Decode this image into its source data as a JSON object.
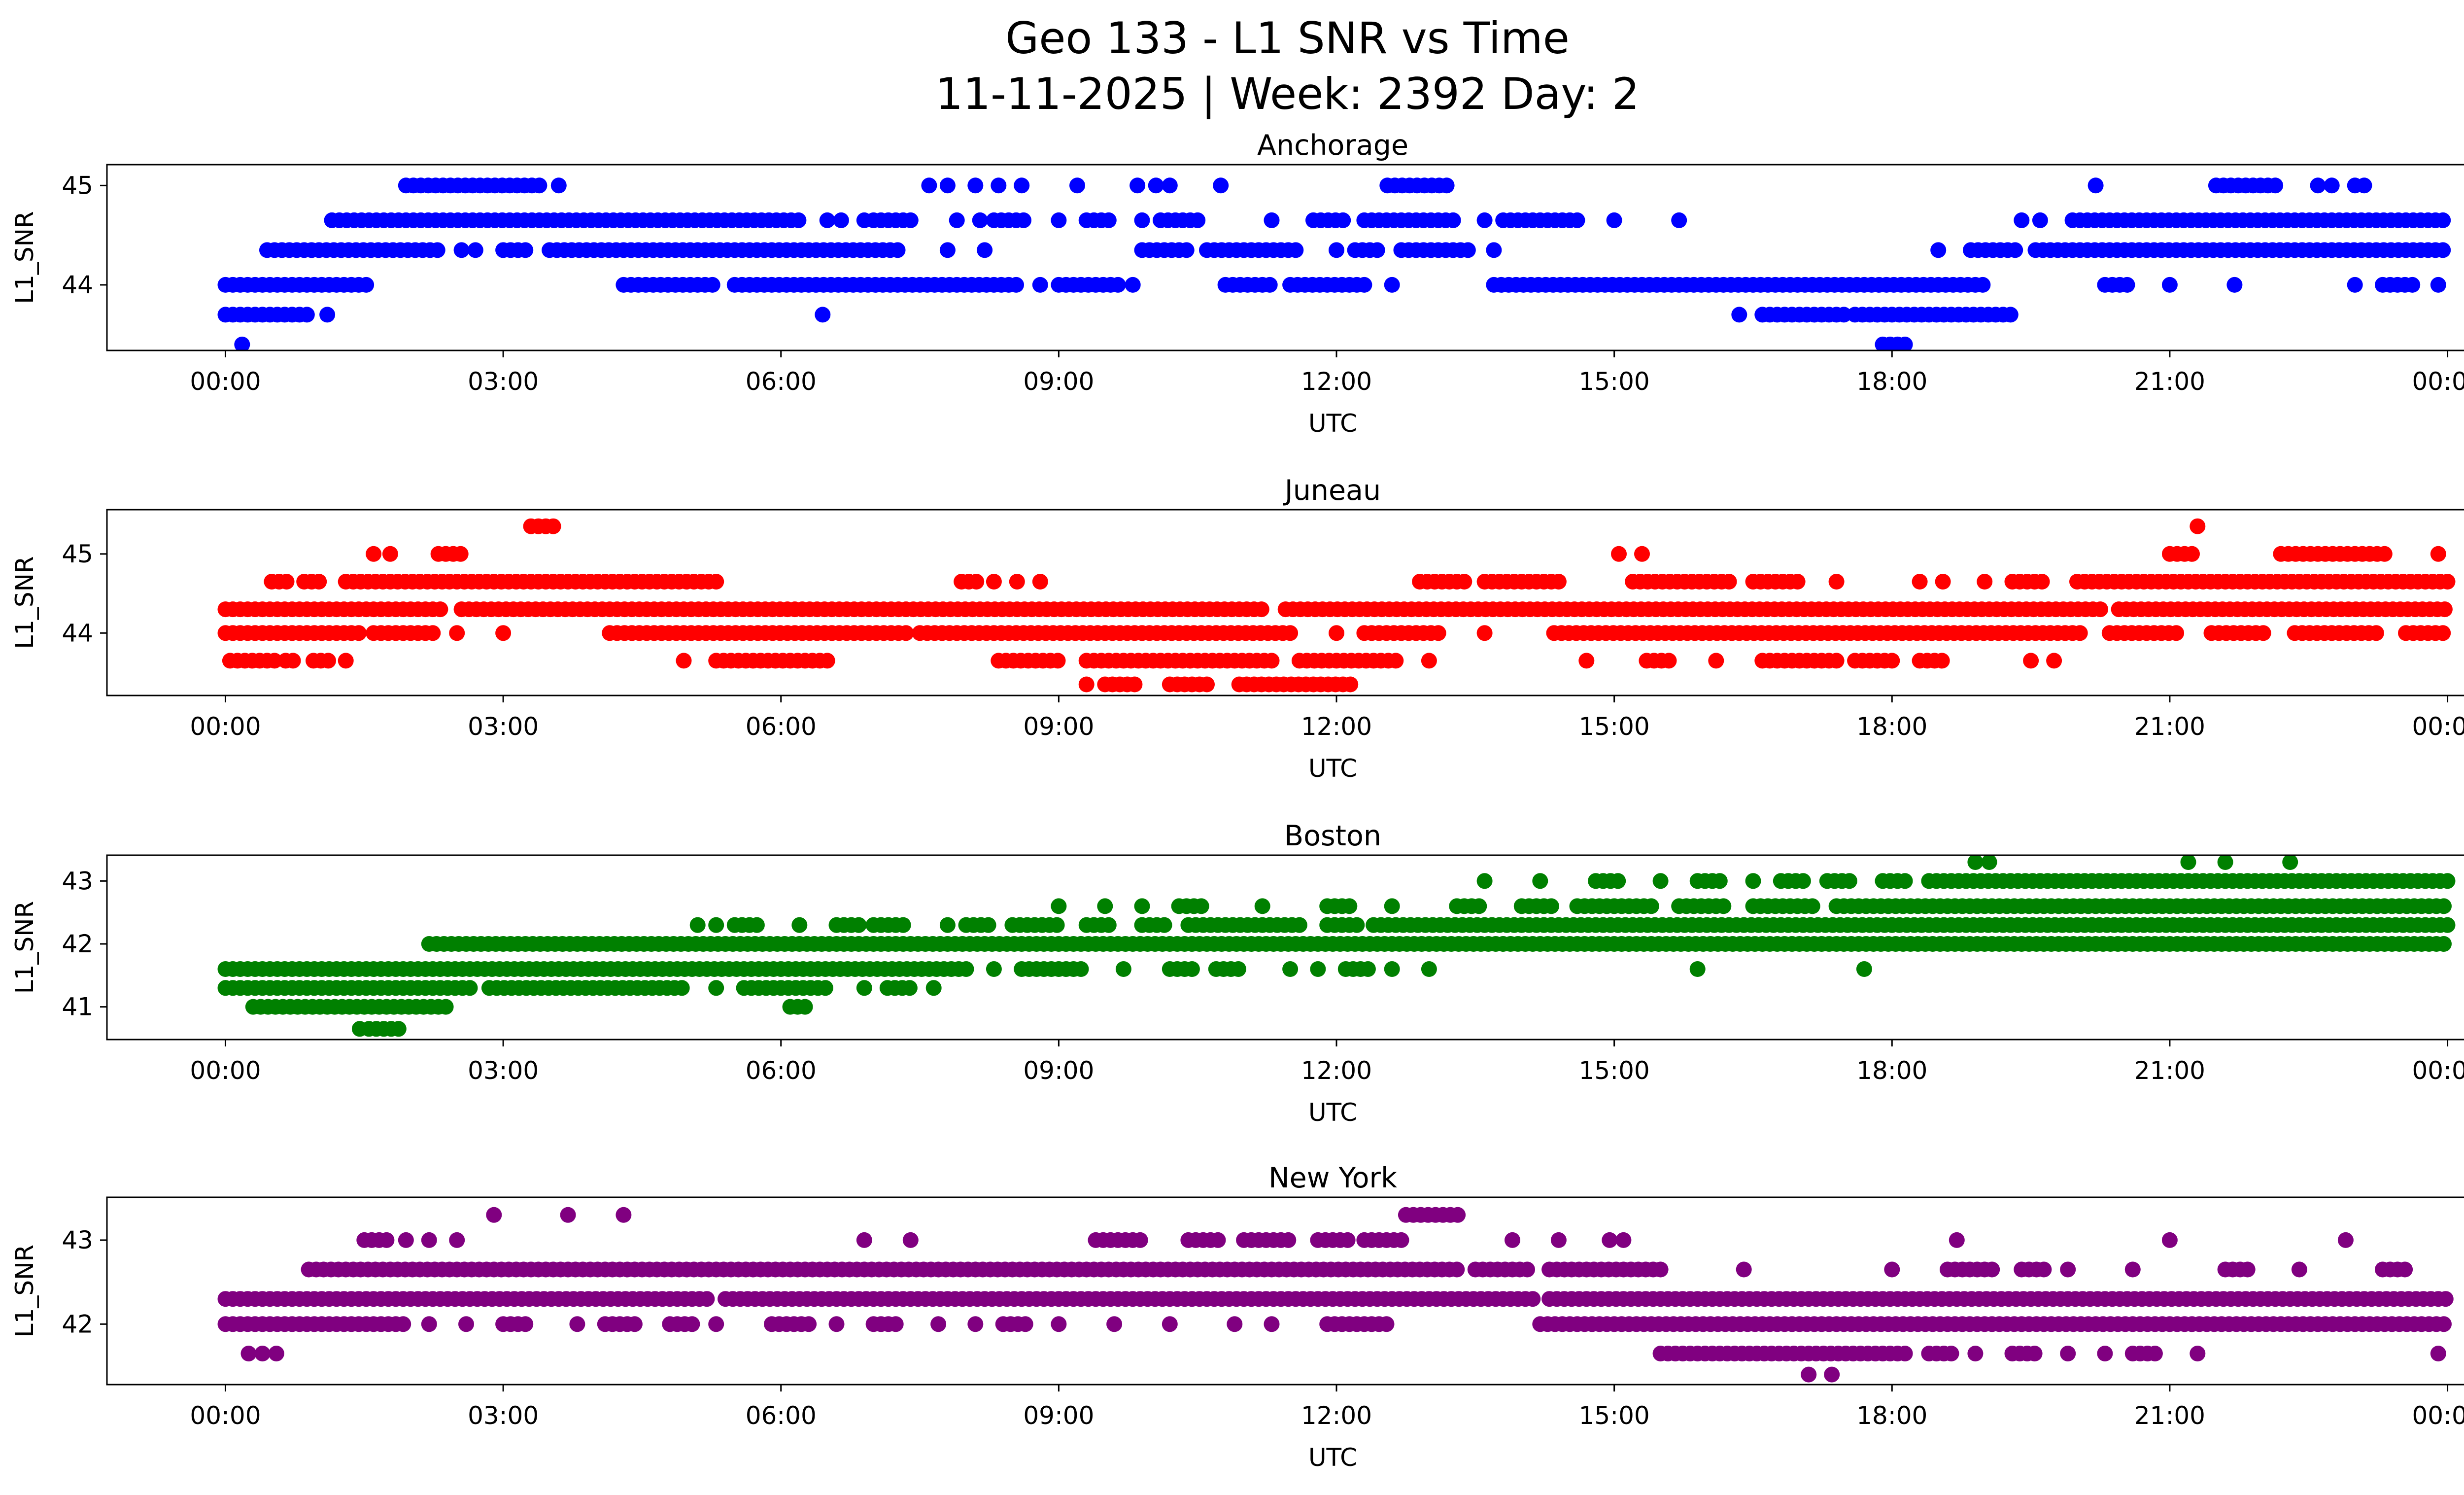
{
  "figure": {
    "title_line1": "Geo 133 - L1 SNR vs Time",
    "title_line2": "11-11-2025 | Week: 2392 Day: 2"
  },
  "chart_data": [
    {
      "type": "scatter",
      "title": "Anchorage",
      "color": "#0000ff",
      "xlabel": "UTC",
      "ylabel": "L1_SNR",
      "xlim": [
        -1.28,
        25.2
      ],
      "ylim": [
        43.34,
        45.21
      ],
      "xticks": [
        0,
        3,
        6,
        9,
        12,
        15,
        18,
        21,
        24
      ],
      "xtick_labels": [
        "00:00",
        "03:00",
        "06:00",
        "09:00",
        "12:00",
        "15:00",
        "18:00",
        "21:00",
        "00:00"
      ],
      "yticks": [
        44,
        45
      ],
      "ytick_labels": [
        "44",
        "45"
      ],
      "legend": "none",
      "grid": false,
      "bands": [
        {
          "snr": 45.0,
          "segments": [
            [
              1.95,
              3.45
            ],
            [
              12.55,
              13.25
            ],
            [
              21.5,
              22.15
            ]
          ],
          "points": [
            3.6,
            7.6,
            7.8,
            8.1,
            8.35,
            8.6,
            9.2,
            9.85,
            10.05,
            10.2,
            10.75,
            20.2,
            22.6,
            22.75,
            23.0,
            23.1
          ]
        },
        {
          "snr": 44.65,
          "segments": [
            [
              1.15,
              6.25
            ],
            [
              7.0,
              7.45
            ],
            [
              8.3,
              8.65
            ],
            [
              9.3,
              9.55
            ],
            [
              10.1,
              10.5
            ],
            [
              11.75,
              12.1
            ],
            [
              12.3,
              13.3
            ],
            [
              13.8,
              14.6
            ],
            [
              19.95,
              24.0
            ]
          ],
          "points": [
            6.5,
            6.65,
            6.9,
            7.9,
            8.15,
            9.0,
            9.9,
            11.3,
            13.6,
            15.0,
            15.7,
            19.4,
            19.6
          ]
        },
        {
          "snr": 44.35,
          "segments": [
            [
              0.45,
              2.3
            ],
            [
              3.0,
              3.25
            ],
            [
              3.5,
              7.3
            ],
            [
              9.9,
              10.45
            ],
            [
              10.6,
              11.6
            ],
            [
              12.2,
              12.45
            ],
            [
              12.7,
              13.45
            ],
            [
              18.85,
              19.4
            ],
            [
              19.55,
              24.0
            ]
          ],
          "points": [
            2.55,
            2.7,
            7.8,
            8.2,
            12.0,
            13.7,
            18.5
          ]
        },
        {
          "snr": 44.0,
          "segments": [
            [
              0.0,
              1.55
            ],
            [
              4.3,
              5.3
            ],
            [
              5.5,
              8.6
            ],
            [
              9.0,
              9.65
            ],
            [
              10.8,
              11.35
            ],
            [
              11.5,
              12.3
            ],
            [
              13.7,
              19.05
            ],
            [
              20.3,
              20.55
            ],
            [
              23.3,
              23.65
            ]
          ],
          "points": [
            8.8,
            9.8,
            12.6,
            21.0,
            21.7,
            23.0,
            23.9
          ]
        },
        {
          "snr": 43.7,
          "segments": [
            [
              0.0,
              0.95
            ],
            [
              16.6,
              17.5
            ],
            [
              17.6,
              19.3
            ]
          ],
          "points": [
            1.1,
            6.45,
            16.35
          ]
        },
        {
          "snr": 43.4,
          "segments": [
            [
              17.9,
              18.15
            ]
          ],
          "points": [
            0.18
          ]
        }
      ]
    },
    {
      "type": "scatter",
      "title": "Juneau",
      "color": "#ff0000",
      "xlabel": "UTC",
      "ylabel": "L1_SNR",
      "xlim": [
        -1.28,
        25.2
      ],
      "ylim": [
        43.21,
        45.56
      ],
      "xticks": [
        0,
        3,
        6,
        9,
        12,
        15,
        18,
        21,
        24
      ],
      "xtick_labels": [
        "00:00",
        "03:00",
        "06:00",
        "09:00",
        "12:00",
        "15:00",
        "18:00",
        "21:00",
        "00:00"
      ],
      "yticks": [
        44,
        45
      ],
      "ytick_labels": [
        "44",
        "45"
      ],
      "legend": "none",
      "grid": false,
      "bands": [
        {
          "snr": 45.35,
          "segments": [
            [
              3.3,
              3.55
            ]
          ],
          "points": [
            21.3
          ]
        },
        {
          "snr": 45.0,
          "segments": [
            [
              2.3,
              2.55
            ],
            [
              21.0,
              21.25
            ],
            [
              22.2,
              23.35
            ]
          ],
          "points": [
            1.6,
            1.78,
            15.05,
            15.3,
            23.9
          ]
        },
        {
          "snr": 44.65,
          "segments": [
            [
              0.5,
              0.7
            ],
            [
              0.85,
              1.05
            ],
            [
              1.3,
              5.35
            ],
            [
              7.95,
              8.15
            ],
            [
              12.9,
              13.45
            ],
            [
              13.6,
              14.45
            ],
            [
              15.2,
              16.3
            ],
            [
              16.5,
              17.05
            ],
            [
              19.3,
              19.65
            ],
            [
              20.0,
              24.0
            ]
          ],
          "points": [
            8.3,
            8.55,
            8.8,
            17.4,
            18.3,
            18.55,
            19.0
          ]
        },
        {
          "snr": 44.3,
          "segments": [
            [
              0.0,
              2.35
            ],
            [
              2.55,
              11.2
            ],
            [
              11.45,
              20.3
            ],
            [
              20.45,
              24.0
            ]
          ],
          "points": []
        },
        {
          "snr": 44.0,
          "segments": [
            [
              0.0,
              1.45
            ],
            [
              1.6,
              2.3
            ],
            [
              4.15,
              7.35
            ],
            [
              7.5,
              11.5
            ],
            [
              12.3,
              13.1
            ],
            [
              14.35,
              20.05
            ],
            [
              20.35,
              21.1
            ],
            [
              21.45,
              22.05
            ],
            [
              22.35,
              23.3
            ],
            [
              23.55,
              24.0
            ]
          ],
          "points": [
            2.5,
            3.0,
            12.0,
            13.6
          ]
        },
        {
          "snr": 43.65,
          "segments": [
            [
              0.05,
              0.55
            ],
            [
              0.65,
              0.8
            ],
            [
              0.95,
              1.15
            ],
            [
              5.3,
              6.55
            ],
            [
              8.35,
              9.05
            ],
            [
              9.3,
              11.35
            ],
            [
              11.6,
              12.65
            ],
            [
              15.35,
              15.6
            ],
            [
              16.6,
              17.45
            ],
            [
              17.6,
              18.0
            ],
            [
              18.3,
              18.6
            ]
          ],
          "points": [
            1.3,
            4.95,
            13.0,
            14.7,
            16.1,
            19.5,
            19.75
          ]
        },
        {
          "snr": 43.35,
          "segments": [
            [
              9.5,
              9.85
            ],
            [
              10.2,
              10.65
            ],
            [
              10.95,
              12.15
            ]
          ],
          "points": [
            9.3
          ]
        }
      ]
    },
    {
      "type": "scatter",
      "title": "Boston",
      "color": "#008000",
      "xlabel": "UTC",
      "ylabel": "L1_SNR",
      "xlim": [
        -1.28,
        25.2
      ],
      "ylim": [
        40.48,
        43.41
      ],
      "xticks": [
        0,
        3,
        6,
        9,
        12,
        15,
        18,
        21,
        24
      ],
      "xtick_labels": [
        "00:00",
        "03:00",
        "06:00",
        "09:00",
        "12:00",
        "15:00",
        "18:00",
        "21:00",
        "00:00"
      ],
      "yticks": [
        41,
        42,
        43
      ],
      "ytick_labels": [
        "41",
        "42",
        "43"
      ],
      "legend": "none",
      "grid": false,
      "bands": [
        {
          "snr": 40.65,
          "segments": [
            [
              1.55,
              1.9
            ]
          ],
          "points": [
            1.45
          ]
        },
        {
          "snr": 41.0,
          "segments": [
            [
              0.3,
              2.45
            ],
            [
              6.1,
              6.3
            ]
          ],
          "points": []
        },
        {
          "snr": 41.3,
          "segments": [
            [
              0.0,
              2.65
            ],
            [
              2.85,
              5.0
            ],
            [
              5.6,
              6.5
            ],
            [
              7.15,
              7.45
            ]
          ],
          "points": [
            5.3,
            6.9,
            7.65
          ]
        },
        {
          "snr": 41.6,
          "segments": [
            [
              0.0,
              8.05
            ],
            [
              8.6,
              9.3
            ],
            [
              10.2,
              10.45
            ],
            [
              10.7,
              11.0
            ],
            [
              12.1,
              12.35
            ]
          ],
          "points": [
            8.3,
            9.7,
            11.5,
            11.8,
            12.6,
            13.0,
            15.9,
            17.7
          ]
        },
        {
          "snr": 42.0,
          "segments": [
            [
              2.2,
              24.0
            ]
          ],
          "points": []
        },
        {
          "snr": 42.3,
          "segments": [
            [
              5.5,
              5.75
            ],
            [
              6.6,
              6.85
            ],
            [
              7.0,
              7.35
            ],
            [
              8.0,
              8.25
            ],
            [
              8.5,
              9.05
            ],
            [
              9.3,
              9.6
            ],
            [
              9.9,
              10.15
            ],
            [
              10.4,
              11.65
            ],
            [
              11.9,
              12.25
            ],
            [
              12.4,
              24.0
            ]
          ],
          "points": [
            5.1,
            5.3,
            6.2,
            7.8
          ]
        },
        {
          "snr": 42.6,
          "segments": [
            [
              10.3,
              10.55
            ],
            [
              11.9,
              12.15
            ],
            [
              13.3,
              13.55
            ],
            [
              14.0,
              14.35
            ],
            [
              14.6,
              15.45
            ],
            [
              15.7,
              16.25
            ],
            [
              16.5,
              17.15
            ],
            [
              17.4,
              24.0
            ]
          ],
          "points": [
            9.0,
            9.5,
            9.9,
            11.2,
            12.6
          ]
        },
        {
          "snr": 43.0,
          "segments": [
            [
              14.8,
              15.05
            ],
            [
              15.9,
              16.15
            ],
            [
              16.8,
              17.05
            ],
            [
              17.3,
              17.55
            ],
            [
              17.9,
              18.15
            ],
            [
              18.4,
              24.0
            ]
          ],
          "points": [
            13.6,
            14.2,
            15.5,
            16.5
          ]
        },
        {
          "snr": 43.3,
          "segments": [],
          "points": [
            18.9,
            19.05,
            21.2,
            21.6,
            22.3
          ]
        }
      ]
    },
    {
      "type": "scatter",
      "title": "New York",
      "color": "#800080",
      "xlabel": "UTC",
      "ylabel": "L1_SNR",
      "xlim": [
        -1.28,
        25.2
      ],
      "ylim": [
        41.28,
        43.51
      ],
      "xticks": [
        0,
        3,
        6,
        9,
        12,
        15,
        18,
        21,
        24
      ],
      "xtick_labels": [
        "00:00",
        "03:00",
        "06:00",
        "09:00",
        "12:00",
        "15:00",
        "18:00",
        "21:00",
        "00:00"
      ],
      "yticks": [
        42,
        43
      ],
      "ytick_labels": [
        "42",
        "43"
      ],
      "legend": "none",
      "grid": false,
      "bands": [
        {
          "snr": 43.3,
          "segments": [
            [
              12.75,
              13.35
            ]
          ],
          "points": [
            2.9,
            3.7,
            4.3
          ]
        },
        {
          "snr": 43.0,
          "segments": [
            [
              1.5,
              1.75
            ],
            [
              9.4,
              9.95
            ],
            [
              10.4,
              10.75
            ],
            [
              11.0,
              11.55
            ],
            [
              11.8,
              12.15
            ],
            [
              12.3,
              12.75
            ]
          ],
          "points": [
            1.95,
            2.2,
            2.5,
            6.9,
            7.4,
            13.9,
            14.4,
            14.95,
            15.1,
            18.7,
            21.0,
            22.9
          ]
        },
        {
          "snr": 42.65,
          "segments": [
            [
              0.9,
              13.35
            ],
            [
              13.5,
              14.1
            ],
            [
              14.3,
              15.5
            ],
            [
              18.6,
              19.15
            ],
            [
              19.4,
              19.65
            ],
            [
              21.6,
              21.85
            ],
            [
              23.3,
              23.55
            ]
          ],
          "points": [
            16.4,
            18.0,
            19.9,
            20.6,
            22.4
          ]
        },
        {
          "snr": 42.3,
          "segments": [
            [
              0.0,
              5.25
            ],
            [
              5.4,
              14.15
            ],
            [
              14.3,
              24.0
            ]
          ],
          "points": []
        },
        {
          "snr": 42.0,
          "segments": [
            [
              0.0,
              1.95
            ],
            [
              3.0,
              3.3
            ],
            [
              4.1,
              4.45
            ],
            [
              4.8,
              5.05
            ],
            [
              5.9,
              6.3
            ],
            [
              7.0,
              7.25
            ],
            [
              8.4,
              8.65
            ],
            [
              11.9,
              12.55
            ],
            [
              14.2,
              24.0
            ]
          ],
          "points": [
            2.2,
            2.6,
            3.8,
            5.3,
            6.6,
            7.7,
            8.1,
            9.0,
            9.6,
            10.2,
            10.9,
            11.3
          ]
        },
        {
          "snr": 41.65,
          "segments": [
            [
              15.5,
              18.15
            ],
            [
              18.4,
              18.65
            ],
            [
              19.3,
              19.55
            ],
            [
              20.6,
              20.85
            ]
          ],
          "points": [
            0.25,
            0.4,
            0.55,
            18.9,
            19.9,
            20.3,
            21.3,
            23.9
          ]
        },
        {
          "snr": 41.4,
          "segments": [],
          "points": [
            17.1,
            17.35
          ]
        }
      ]
    }
  ]
}
